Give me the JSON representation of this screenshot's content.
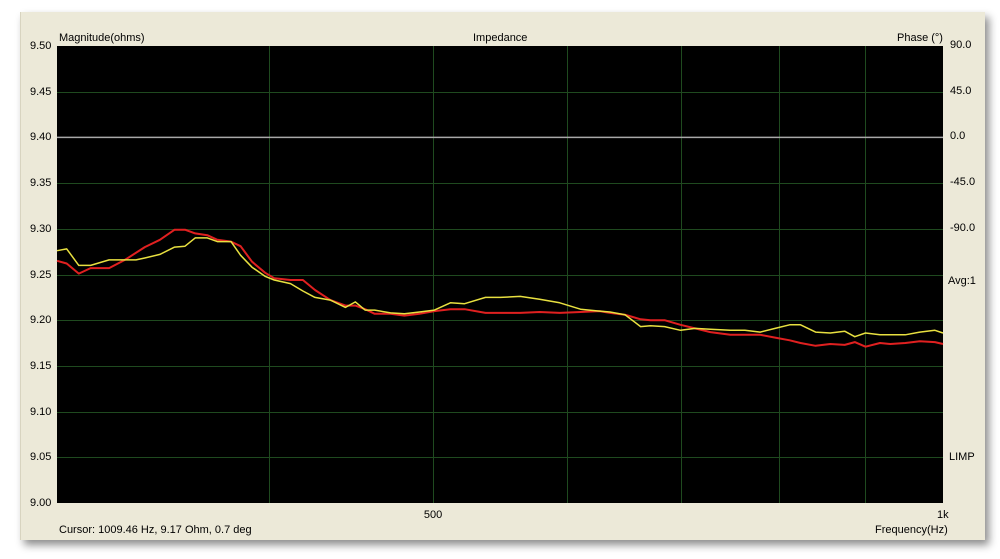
{
  "chart_data": {
    "type": "line",
    "title": "Impedance",
    "ylabel": "Magnitude(ohms)",
    "y2label": "Phase (°)",
    "xlabel": "Frequency(Hz)",
    "xscale": "log",
    "xlim": [
      300,
      1000
    ],
    "ylim": [
      9.0,
      9.5
    ],
    "y2lim": [
      -360,
      90
    ],
    "grid": true,
    "background": "#000000",
    "grid_color": "#1f4a1f",
    "x_grid": [
      400,
      500,
      600,
      700,
      800,
      900
    ],
    "x_ticks": [
      {
        "value": 500,
        "label": "500"
      },
      {
        "value": 1000,
        "label": "1k"
      }
    ],
    "y_ticks": [
      "9.50",
      "9.45",
      "9.40",
      "9.35",
      "9.30",
      "9.25",
      "9.20",
      "9.15",
      "9.10",
      "9.05",
      "9.00"
    ],
    "y2_ticks": [
      "90.0",
      "45.0",
      "0.0",
      "-45.0",
      "-90.0"
    ],
    "series": [
      {
        "color": "#e02020",
        "axis": "magnitude",
        "x": [
          300,
          304,
          309,
          314,
          322,
          329,
          338,
          345,
          352,
          357,
          362,
          368,
          373,
          380,
          385,
          391,
          398,
          403,
          412,
          419,
          426,
          435,
          444,
          450,
          456,
          462,
          472,
          481,
          491,
          501,
          512,
          522,
          537,
          548,
          563,
          578,
          594,
          611,
          627,
          636,
          649,
          663,
          672,
          685,
          700,
          714,
          729,
          749,
          764,
          780,
          796,
          812,
          824,
          841,
          858,
          875,
          887,
          900,
          918,
          931,
          950,
          969,
          989,
          1000
        ],
        "y": [
          9.265,
          9.262,
          9.251,
          9.257,
          9.257,
          9.266,
          9.28,
          9.288,
          9.299,
          9.299,
          9.295,
          9.293,
          9.288,
          9.286,
          9.281,
          9.264,
          9.252,
          9.246,
          9.244,
          9.244,
          9.233,
          9.222,
          9.216,
          9.216,
          9.212,
          9.207,
          9.207,
          9.205,
          9.207,
          9.21,
          9.212,
          9.212,
          9.208,
          9.208,
          9.208,
          9.209,
          9.208,
          9.209,
          9.21,
          9.208,
          9.206,
          9.201,
          9.2,
          9.2,
          9.195,
          9.191,
          9.187,
          9.184,
          9.184,
          9.184,
          9.181,
          9.178,
          9.175,
          9.172,
          9.174,
          9.173,
          9.176,
          9.171,
          9.175,
          9.174,
          9.175,
          9.177,
          9.176,
          9.174
        ]
      },
      {
        "color": "#e8e040",
        "axis": "magnitude",
        "x": [
          300,
          304,
          309,
          314,
          322,
          329,
          334,
          338,
          345,
          352,
          357,
          362,
          368,
          373,
          380,
          385,
          391,
          398,
          403,
          412,
          419,
          426,
          435,
          444,
          450,
          456,
          462,
          472,
          481,
          491,
          501,
          512,
          522,
          537,
          548,
          563,
          578,
          594,
          611,
          627,
          636,
          649,
          663,
          672,
          685,
          700,
          714,
          729,
          749,
          764,
          780,
          796,
          812,
          824,
          841,
          858,
          875,
          887,
          900,
          918,
          931,
          950,
          969,
          989,
          1000
        ],
        "y": [
          9.276,
          9.278,
          9.26,
          9.26,
          9.266,
          9.266,
          9.266,
          9.268,
          9.272,
          9.28,
          9.281,
          9.29,
          9.29,
          9.286,
          9.286,
          9.271,
          9.258,
          9.248,
          9.244,
          9.24,
          9.232,
          9.225,
          9.222,
          9.214,
          9.22,
          9.211,
          9.211,
          9.208,
          9.207,
          9.209,
          9.211,
          9.219,
          9.218,
          9.225,
          9.225,
          9.226,
          9.223,
          9.219,
          9.212,
          9.21,
          9.209,
          9.206,
          9.193,
          9.194,
          9.193,
          9.189,
          9.191,
          9.19,
          9.189,
          9.189,
          9.187,
          9.191,
          9.195,
          9.195,
          9.187,
          9.186,
          9.188,
          9.182,
          9.186,
          9.184,
          9.184,
          9.184,
          9.187,
          9.189,
          9.186
        ]
      },
      {
        "color": "#a8a8a8",
        "axis": "phase",
        "x": [
          300,
          500,
          800,
          1000
        ],
        "y": [
          0,
          0,
          0,
          0
        ]
      }
    ],
    "annotations": {
      "avg": "Avg:1",
      "limp": "LIMP"
    }
  },
  "status": {
    "cursor": "Cursor: 1009.46 Hz, 9.17 Ohm, 0.7 deg"
  }
}
